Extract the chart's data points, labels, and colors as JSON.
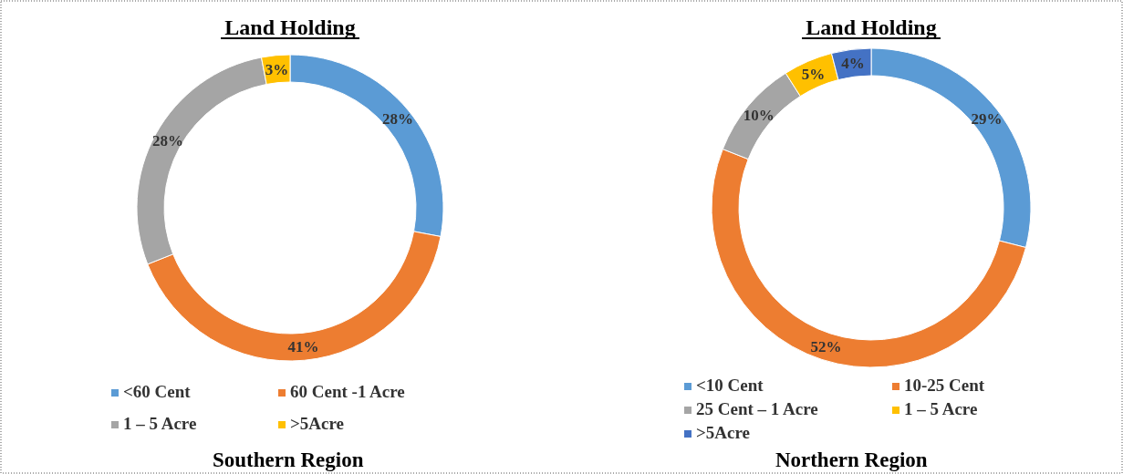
{
  "chart_data": [
    {
      "type": "donut",
      "title": "Land Holding",
      "categories": [
        "<60 Cent",
        "60 Cent -1 Acre",
        "1 – 5 Acre",
        ">5Acre"
      ],
      "values": [
        28,
        41,
        28,
        3
      ],
      "colors": [
        "#5b9bd5",
        "#ed7d31",
        "#a5a5a5",
        "#ffc000"
      ],
      "value_labels": [
        "28%",
        "41%",
        "28%",
        "3%"
      ],
      "legend": "bottom",
      "annotations": [
        "Southern Region"
      ]
    },
    {
      "type": "donut",
      "title": "Land Holding",
      "categories": [
        "<10 Cent",
        "10-25 Cent",
        "25 Cent – 1 Acre",
        "1 – 5 Acre",
        ">5Acre"
      ],
      "values": [
        29,
        52,
        10,
        5,
        4
      ],
      "colors": [
        "#5b9bd5",
        "#ed7d31",
        "#a5a5a5",
        "#ffc000",
        "#4472c4"
      ],
      "value_labels": [
        "29%",
        "52%",
        "10%",
        "5%",
        "4%"
      ],
      "legend": "bottom",
      "annotations": [
        "Northern Region"
      ]
    }
  ]
}
